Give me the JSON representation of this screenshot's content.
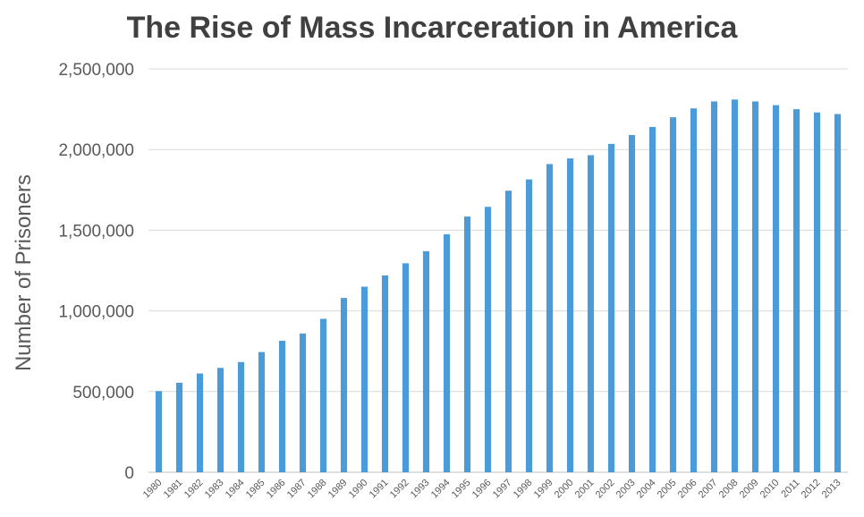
{
  "chart_data": {
    "type": "bar",
    "title": "The Rise of Mass Incarceration in America",
    "xlabel": "",
    "ylabel": "Number of Prisoners",
    "ylim": [
      0,
      2500000
    ],
    "yticks": [
      "0",
      "500,000",
      "1,000,000",
      "1,500,000",
      "2,000,000",
      "2,500,000"
    ],
    "ytick_values": [
      0,
      500000,
      1000000,
      1500000,
      2000000,
      2500000
    ],
    "grid": true,
    "legend": "none",
    "bar_color": "#4a9bd8",
    "categories": [
      "1980",
      "1981",
      "1982",
      "1983",
      "1984",
      "1985",
      "1986",
      "1987",
      "1988",
      "1989",
      "1990",
      "1991",
      "1992",
      "1993",
      "1994",
      "1995",
      "1996",
      "1997",
      "1998",
      "1999",
      "2000",
      "2001",
      "2002",
      "2003",
      "2004",
      "2005",
      "2006",
      "2007",
      "2008",
      "2009",
      "2010",
      "2011",
      "2012",
      "2013"
    ],
    "values": [
      503000,
      555000,
      612000,
      647000,
      683000,
      745000,
      815000,
      860000,
      951000,
      1080000,
      1150000,
      1220000,
      1295000,
      1370000,
      1475000,
      1585000,
      1645000,
      1745000,
      1815000,
      1910000,
      1945000,
      1965000,
      2035000,
      2090000,
      2140000,
      2200000,
      2255000,
      2298000,
      2310000,
      2298000,
      2275000,
      2250000,
      2230000,
      2220000
    ]
  }
}
